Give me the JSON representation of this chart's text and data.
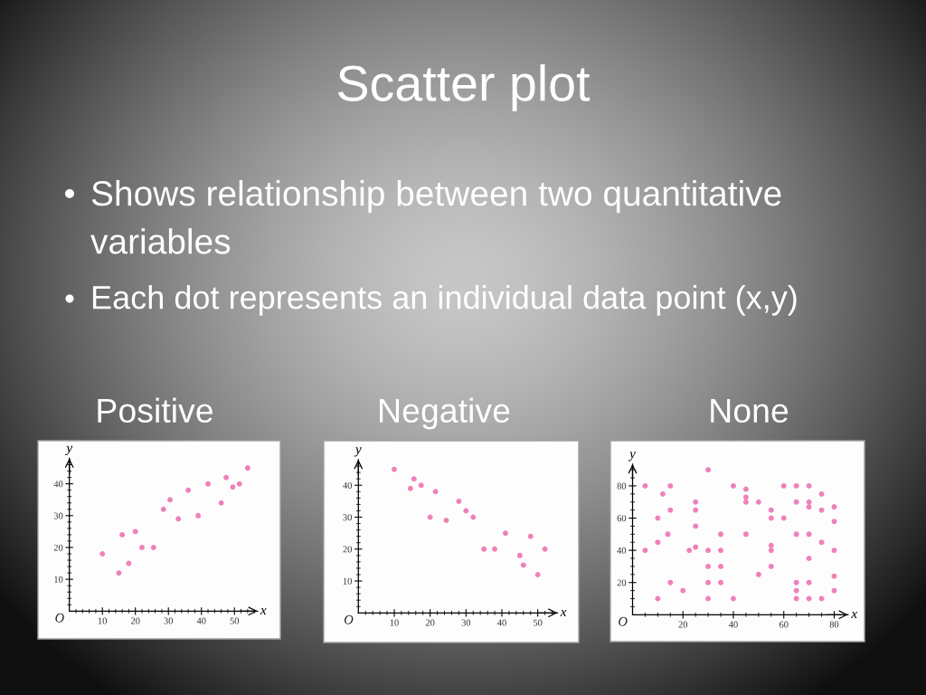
{
  "chart_data": [
    {
      "type": "other",
      "title": "Scatter plot",
      "annotations": [
        "Shows relationship between two quantitative variables",
        "Each dot represents an individual data point (x,y)"
      ]
    },
    {
      "type": "scatter",
      "title": "Positive",
      "xlabel": "x",
      "ylabel": "y",
      "marker": "circle",
      "color": "#f080b8",
      "x": [
        10,
        15,
        16,
        18,
        20,
        22,
        25.5,
        28.5,
        30.5,
        33,
        36,
        39,
        42,
        46,
        47.5,
        49.5,
        51.5,
        54
      ],
      "values": [
        18,
        12,
        24,
        15,
        25,
        20,
        20,
        32,
        35,
        29,
        38,
        30,
        40,
        34,
        42,
        39,
        40,
        45
      ],
      "xlim": [
        0,
        57
      ],
      "ylim": [
        0,
        48
      ],
      "xticks": [
        {
          "value": 2,
          "label": null
        },
        {
          "value": 4,
          "label": null
        },
        {
          "value": 6,
          "label": null
        },
        {
          "value": 8,
          "label": null
        },
        10,
        {
          "value": 12,
          "label": null
        },
        {
          "value": 14,
          "label": null
        },
        {
          "value": 16,
          "label": null
        },
        {
          "value": 18,
          "label": null
        },
        20,
        {
          "value": 22,
          "label": null
        },
        {
          "value": 24,
          "label": null
        },
        {
          "value": 26,
          "label": null
        },
        {
          "value": 28,
          "label": null
        },
        30,
        {
          "value": 32,
          "label": null
        },
        {
          "value": 34,
          "label": null
        },
        {
          "value": 36,
          "label": null
        },
        {
          "value": 38,
          "label": null
        },
        40,
        {
          "value": 42,
          "label": null
        },
        {
          "value": 44,
          "label": null
        },
        {
          "value": 46,
          "label": null
        },
        {
          "value": 48,
          "label": null
        },
        50,
        {
          "value": 52,
          "label": null
        },
        {
          "value": 54,
          "label": null
        },
        {
          "value": 56,
          "label": null
        }
      ],
      "yticks": [
        {
          "value": 2,
          "label": null
        },
        {
          "value": 4,
          "label": null
        },
        {
          "value": 6,
          "label": null
        },
        {
          "value": 8,
          "label": null
        },
        10,
        {
          "value": 12,
          "label": null
        },
        {
          "value": 14,
          "label": null
        },
        {
          "value": 16,
          "label": null
        },
        {
          "value": 18,
          "label": null
        },
        20,
        {
          "value": 22,
          "label": null
        },
        {
          "value": 24,
          "label": null
        },
        {
          "value": 26,
          "label": null
        },
        {
          "value": 28,
          "label": null
        },
        30,
        {
          "value": 32,
          "label": null
        },
        {
          "value": 34,
          "label": null
        },
        {
          "value": 36,
          "label": null
        },
        {
          "value": 38,
          "label": null
        },
        40,
        {
          "value": 42,
          "label": null
        },
        {
          "value": 44,
          "label": null
        },
        {
          "value": 46,
          "label": null
        }
      ],
      "annotations": [
        "O"
      ]
    },
    {
      "type": "scatter",
      "title": "Negative",
      "xlabel": "x",
      "ylabel": "y",
      "marker": "circle",
      "color": "#f080b8",
      "x": [
        10,
        14.5,
        15.5,
        17.5,
        20,
        21.5,
        24.5,
        28,
        30,
        32,
        35,
        38,
        41,
        45,
        46,
        48,
        50,
        52
      ],
      "values": [
        45,
        39,
        42,
        40,
        30,
        38,
        29,
        35,
        32,
        30,
        20,
        20,
        25,
        18,
        15,
        24,
        12,
        20
      ],
      "xlim": [
        0,
        55.5
      ],
      "ylim": [
        0,
        48
      ],
      "xticks": [
        {
          "value": 2,
          "label": null
        },
        {
          "value": 4,
          "label": null
        },
        {
          "value": 6,
          "label": null
        },
        {
          "value": 8,
          "label": null
        },
        10,
        {
          "value": 12,
          "label": null
        },
        {
          "value": 14,
          "label": null
        },
        {
          "value": 16,
          "label": null
        },
        {
          "value": 18,
          "label": null
        },
        20,
        {
          "value": 22,
          "label": null
        },
        {
          "value": 24,
          "label": null
        },
        {
          "value": 26,
          "label": null
        },
        {
          "value": 28,
          "label": null
        },
        30,
        {
          "value": 32,
          "label": null
        },
        {
          "value": 34,
          "label": null
        },
        {
          "value": 36,
          "label": null
        },
        {
          "value": 38,
          "label": null
        },
        40,
        {
          "value": 42,
          "label": null
        },
        {
          "value": 44,
          "label": null
        },
        {
          "value": 46,
          "label": null
        },
        {
          "value": 48,
          "label": null
        },
        50,
        {
          "value": 52,
          "label": null
        },
        {
          "value": 54,
          "label": null
        }
      ],
      "yticks": [
        {
          "value": 2,
          "label": null
        },
        {
          "value": 4,
          "label": null
        },
        {
          "value": 6,
          "label": null
        },
        {
          "value": 8,
          "label": null
        },
        10,
        {
          "value": 12,
          "label": null
        },
        {
          "value": 14,
          "label": null
        },
        {
          "value": 16,
          "label": null
        },
        {
          "value": 18,
          "label": null
        },
        20,
        {
          "value": 22,
          "label": null
        },
        {
          "value": 24,
          "label": null
        },
        {
          "value": 26,
          "label": null
        },
        {
          "value": 28,
          "label": null
        },
        30,
        {
          "value": 32,
          "label": null
        },
        {
          "value": 34,
          "label": null
        },
        {
          "value": 36,
          "label": null
        },
        {
          "value": 38,
          "label": null
        },
        40,
        {
          "value": 42,
          "label": null
        },
        {
          "value": 44,
          "label": null
        },
        {
          "value": 46,
          "label": null
        }
      ],
      "annotations": [
        "O"
      ]
    },
    {
      "type": "scatter",
      "title": "None",
      "xlabel": "x",
      "ylabel": "y",
      "marker": "circle",
      "color": "#f080b8",
      "x": [
        5,
        5,
        10,
        10,
        10,
        12,
        14,
        15,
        15,
        15,
        20,
        22.5,
        25,
        25,
        25,
        25,
        30,
        30,
        30,
        30,
        30,
        35,
        35,
        35,
        35,
        40,
        40,
        45,
        45,
        45,
        45,
        50,
        50,
        55,
        55,
        55,
        55,
        55,
        60,
        60,
        65,
        65,
        65,
        65,
        65,
        65,
        70,
        70,
        70,
        70,
        70,
        70,
        70,
        75,
        75,
        75,
        75,
        80,
        80,
        80,
        80,
        80
      ],
      "values": [
        80,
        40,
        60,
        45,
        10,
        75,
        50,
        80,
        65,
        20,
        15,
        40,
        70,
        65,
        55,
        42,
        90,
        40,
        30,
        20,
        10,
        50,
        40,
        30,
        20,
        80,
        10,
        78,
        73,
        70,
        50,
        70,
        25,
        65,
        60,
        43,
        40,
        30,
        80,
        60,
        80,
        70,
        50,
        20,
        15,
        10,
        80,
        70,
        67,
        50,
        35,
        20,
        10,
        75,
        65,
        45,
        10,
        67,
        58,
        40,
        24,
        15
      ],
      "xlim": [
        0,
        85.5
      ],
      "ylim": [
        0,
        93.5
      ],
      "xticks": [
        {
          "value": 5,
          "label": null
        },
        {
          "value": 10,
          "label": null
        },
        {
          "value": 15,
          "label": null
        },
        20,
        {
          "value": 25,
          "label": null
        },
        {
          "value": 30,
          "label": null
        },
        {
          "value": 35,
          "label": null
        },
        40,
        {
          "value": 45,
          "label": null
        },
        {
          "value": 50,
          "label": null
        },
        {
          "value": 55,
          "label": null
        },
        60,
        {
          "value": 65,
          "label": null
        },
        {
          "value": 70,
          "label": null
        },
        {
          "value": 75,
          "label": null
        },
        80
      ],
      "yticks": [
        {
          "value": 5,
          "label": null
        },
        {
          "value": 10,
          "label": null
        },
        {
          "value": 15,
          "label": null
        },
        20,
        {
          "value": 25,
          "label": null
        },
        {
          "value": 30,
          "label": null
        },
        {
          "value": 35,
          "label": null
        },
        40,
        {
          "value": 45,
          "label": null
        },
        {
          "value": 50,
          "label": null
        },
        {
          "value": 55,
          "label": null
        },
        60,
        {
          "value": 65,
          "label": null
        },
        {
          "value": 70,
          "label": null
        },
        {
          "value": 75,
          "label": null
        },
        80,
        {
          "value": 85,
          "label": null
        },
        {
          "value": 90,
          "label": null
        }
      ],
      "annotations": [
        "O"
      ]
    }
  ]
}
